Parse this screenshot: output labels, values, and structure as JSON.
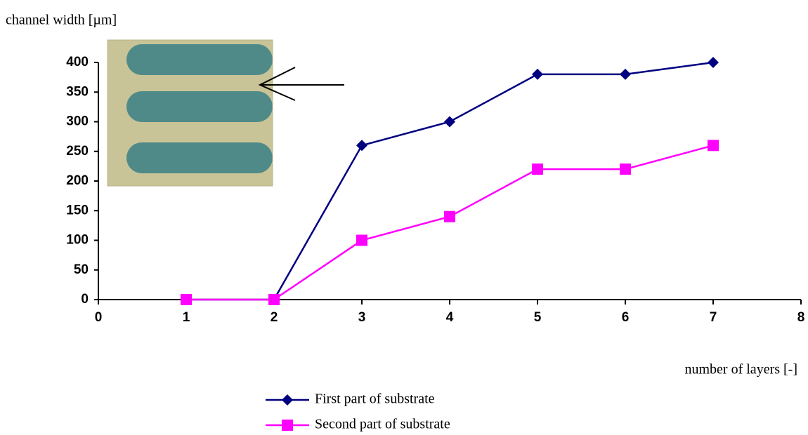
{
  "chart_data": {
    "type": "line",
    "y_label": "channel width [µm]",
    "x_label": "number of layers [-]",
    "x": [
      1,
      2,
      3,
      4,
      5,
      6,
      7
    ],
    "series": [
      {
        "name": "First part of substrate",
        "color": "#000080",
        "marker": "diamond",
        "values": [
          0,
          0,
          260,
          300,
          380,
          380,
          400
        ]
      },
      {
        "name": "Second part of substrate",
        "color": "#ff00ff",
        "marker": "square",
        "values": [
          0,
          0,
          100,
          140,
          220,
          220,
          260
        ]
      }
    ],
    "xlim": [
      0,
      8
    ],
    "xticks": [
      0,
      1,
      2,
      3,
      4,
      5,
      6,
      7,
      8
    ],
    "ylim": [
      0,
      400
    ],
    "yticks": [
      0,
      50,
      100,
      150,
      200,
      250,
      300,
      350,
      400
    ],
    "grid": false,
    "legend": "bottom"
  }
}
